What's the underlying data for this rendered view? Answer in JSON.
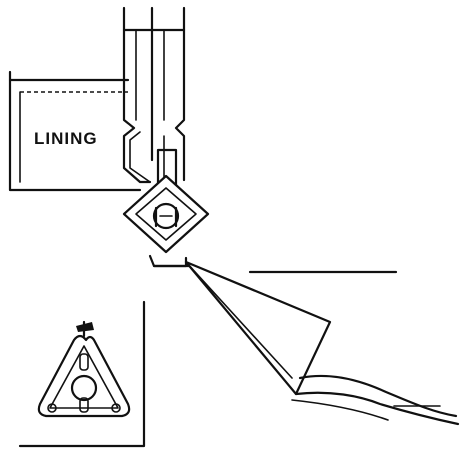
{
  "diagram": {
    "labels": {
      "lining": "LINING"
    },
    "colors": {
      "ink": "#111111",
      "paper": "#ffffff"
    }
  }
}
